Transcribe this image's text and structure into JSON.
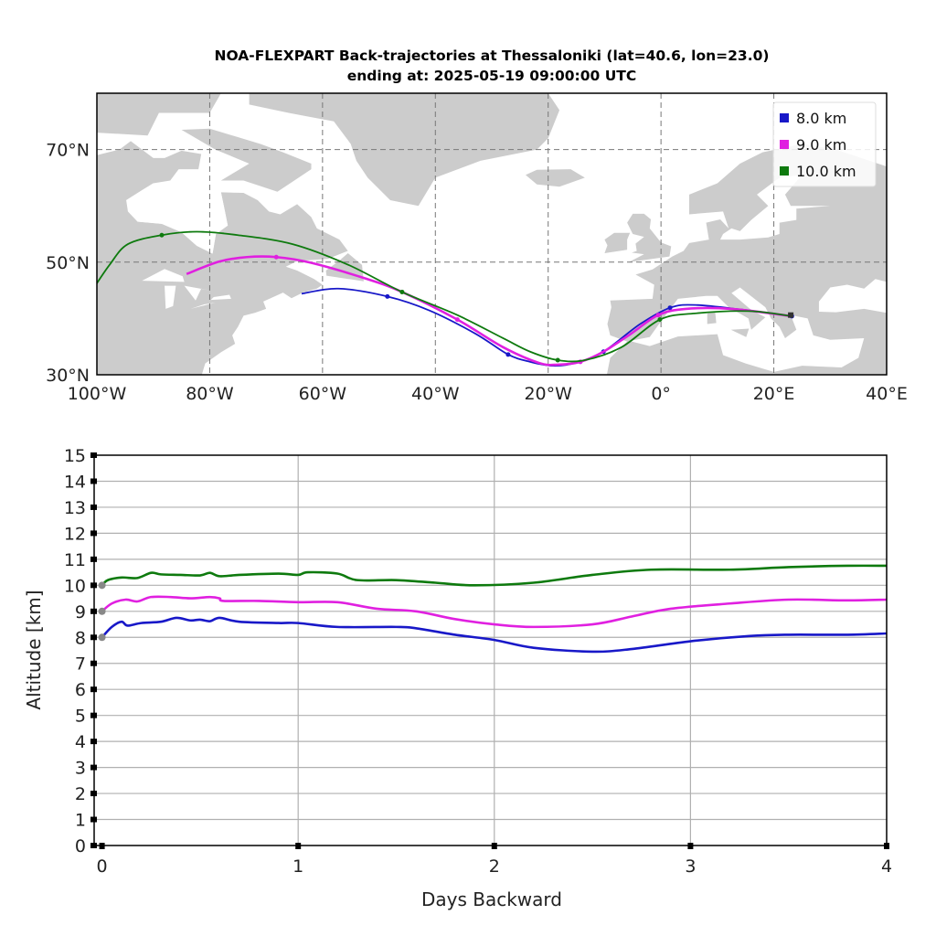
{
  "title_line1": "NOA-FLEXPART Back-trajectories at Thessaloniki (lat=40.6, lon=23.0)",
  "title_line2": "ending at: 2025-05-19  09:00:00 UTC",
  "colors": {
    "blue": "#1818c8",
    "magenta": "#e020e0",
    "green": "#0e7a0e",
    "land": "#cccccc",
    "grid": "#888888"
  },
  "chart_data": [
    {
      "type": "line",
      "kind": "map-trajectories",
      "xlabel": "",
      "ylabel": "",
      "xlim": [
        -100,
        40
      ],
      "ylim": [
        30,
        80
      ],
      "xticks": [
        -100,
        -80,
        -60,
        -40,
        -20,
        0,
        20,
        40
      ],
      "xtick_labels": [
        "100°W",
        "80°W",
        "60°W",
        "40°W",
        "20°W",
        "0°",
        "20°E",
        "40°E"
      ],
      "yticks": [
        30,
        50,
        70
      ],
      "ytick_labels": [
        "30°N",
        "50°N",
        "70°N"
      ],
      "grid": true,
      "legend_position": "top-right",
      "series": [
        {
          "name": "8.0   km",
          "color_key": "blue",
          "lon": [
            23.2,
            14.1,
            6,
            1.6,
            -3.7,
            -10.2,
            -15.1,
            -19.1,
            -23.2,
            -27.1,
            -32.9,
            -41,
            -48.5,
            -57.2,
            -63.7
          ],
          "lat": [
            40.4,
            41.6,
            42.4,
            41.9,
            39,
            34.1,
            32.1,
            31.6,
            32.3,
            33.6,
            37.3,
            41.4,
            43.9,
            45.3,
            44.4
          ],
          "markers_lon": [
            23.2,
            1.6,
            -10.2,
            -27.1,
            -48.5
          ],
          "markers_lat": [
            40.4,
            41.9,
            34.1,
            33.6,
            43.9
          ]
        },
        {
          "name": "9.0   km",
          "color_key": "magenta",
          "lon": [
            23.2,
            12.5,
            4.4,
            -0.5,
            -5.3,
            -10.2,
            -14.3,
            -18.3,
            -21.6,
            -28,
            -36.1,
            -45.9,
            -52.4,
            -62.1,
            -68.2,
            -73.4,
            -78.3,
            -84.1
          ],
          "lat": [
            40.4,
            41.7,
            41.7,
            40.6,
            37.3,
            34.1,
            32.3,
            31.8,
            32.1,
            34.9,
            39.8,
            44.7,
            47.1,
            49.9,
            50.9,
            50.9,
            50.1,
            47.9
          ],
          "markers_lon": [
            -0.5,
            -14.3,
            -36.1,
            -68.2
          ],
          "markers_lat": [
            40.6,
            32.3,
            39.8,
            50.9
          ]
        },
        {
          "name": "10.0 km",
          "color_key": "green",
          "lon": [
            23.2,
            15.7,
            6,
            -0.2,
            -7,
            -13.5,
            -18.3,
            -23.2,
            -28,
            -36.1,
            -45.9,
            -55.6,
            -65.3,
            -75,
            -82.3,
            -88.5,
            -94.5,
            -97.7,
            -100.5
          ],
          "lat": [
            40.4,
            41.3,
            40.9,
            39.8,
            34.9,
            32.6,
            32.6,
            34.1,
            36.5,
            40.6,
            44.7,
            49.6,
            53.2,
            54.8,
            55.4,
            54.8,
            53.2,
            49.6,
            45.5
          ],
          "markers_lon": [
            -0.2,
            -18.3,
            -45.9,
            -88.5
          ],
          "markers_lat": [
            39.8,
            32.6,
            44.7,
            54.8
          ]
        }
      ]
    },
    {
      "type": "line",
      "title": "",
      "xlabel": "Days Backward",
      "ylabel": "Altitude [km]",
      "xlim": [
        -0.04,
        4
      ],
      "ylim": [
        0,
        15
      ],
      "xticks": [
        0,
        1,
        2,
        3,
        4
      ],
      "yticks": [
        0,
        1,
        2,
        3,
        4,
        5,
        6,
        7,
        8,
        9,
        10,
        11,
        12,
        13,
        14,
        15
      ],
      "grid": true,
      "series": [
        {
          "name": "8.0 km",
          "color_key": "blue",
          "x": [
            0,
            0.05,
            0.1,
            0.13,
            0.2,
            0.3,
            0.38,
            0.45,
            0.5,
            0.55,
            0.6,
            0.7,
            0.9,
            1.0,
            1.2,
            1.5,
            1.6,
            1.8,
            2.0,
            2.2,
            2.5,
            2.7,
            3.0,
            3.3,
            3.5,
            3.8,
            4.0
          ],
          "y": [
            8.0,
            8.4,
            8.6,
            8.45,
            8.55,
            8.6,
            8.75,
            8.65,
            8.68,
            8.62,
            8.75,
            8.6,
            8.55,
            8.55,
            8.4,
            8.4,
            8.35,
            8.1,
            7.9,
            7.6,
            7.45,
            7.55,
            7.85,
            8.05,
            8.1,
            8.1,
            8.15
          ]
        },
        {
          "name": "9.0 km",
          "color_key": "magenta",
          "x": [
            0,
            0.05,
            0.12,
            0.18,
            0.25,
            0.35,
            0.45,
            0.55,
            0.6,
            0.62,
            0.8,
            1.0,
            1.2,
            1.4,
            1.6,
            1.8,
            2.0,
            2.2,
            2.5,
            2.7,
            2.9,
            3.2,
            3.5,
            3.8,
            4.0
          ],
          "y": [
            9.0,
            9.3,
            9.45,
            9.38,
            9.55,
            9.55,
            9.5,
            9.55,
            9.5,
            9.4,
            9.4,
            9.35,
            9.35,
            9.1,
            9.0,
            8.7,
            8.5,
            8.4,
            8.5,
            8.8,
            9.1,
            9.3,
            9.45,
            9.42,
            9.45
          ]
        },
        {
          "name": "10.0 km",
          "color_key": "green",
          "x": [
            0,
            0.03,
            0.1,
            0.18,
            0.25,
            0.3,
            0.4,
            0.5,
            0.55,
            0.6,
            0.7,
            0.9,
            1.0,
            1.05,
            1.2,
            1.3,
            1.5,
            1.7,
            1.9,
            2.2,
            2.5,
            2.8,
            3.2,
            3.5,
            3.8,
            4.0
          ],
          "y": [
            10.0,
            10.2,
            10.3,
            10.28,
            10.48,
            10.42,
            10.4,
            10.38,
            10.48,
            10.35,
            10.4,
            10.45,
            10.4,
            10.5,
            10.45,
            10.2,
            10.2,
            10.1,
            10.0,
            10.1,
            10.4,
            10.6,
            10.6,
            10.7,
            10.75,
            10.75
          ]
        }
      ]
    }
  ]
}
